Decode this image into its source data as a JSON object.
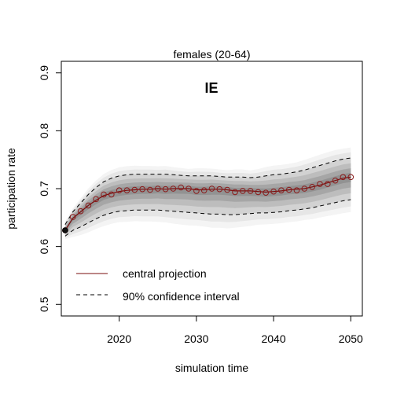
{
  "chart_data": {
    "type": "line",
    "title": "females (20-64)",
    "panel_label": "IE",
    "xlabel": "simulation time",
    "ylabel": "participation rate",
    "xlim": [
      2012.5,
      2051.5
    ],
    "ylim": [
      0.48,
      0.92
    ],
    "x_ticks": [
      2020,
      2030,
      2040,
      2050
    ],
    "y_ticks": [
      0.5,
      0.6,
      0.7,
      0.8,
      0.9
    ],
    "x_tick_labels": [
      "2020",
      "2030",
      "2040",
      "2050"
    ],
    "y_tick_labels": [
      "0.5",
      "0.6",
      "0.7",
      "0.8",
      "0.9"
    ],
    "grid": false,
    "legend_position": "bottom-left",
    "x": [
      2013,
      2014,
      2015,
      2016,
      2017,
      2018,
      2019,
      2020,
      2021,
      2022,
      2023,
      2024,
      2025,
      2026,
      2027,
      2028,
      2029,
      2030,
      2031,
      2032,
      2033,
      2034,
      2035,
      2036,
      2037,
      2038,
      2039,
      2040,
      2041,
      2042,
      2043,
      2044,
      2045,
      2046,
      2047,
      2048,
      2049,
      2050
    ],
    "central": [
      0.628,
      0.649,
      0.66,
      0.671,
      0.68,
      0.688,
      0.692,
      0.695,
      0.697,
      0.698,
      0.699,
      0.699,
      0.7,
      0.699,
      0.7,
      0.7,
      0.7,
      0.698,
      0.698,
      0.699,
      0.699,
      0.698,
      0.696,
      0.696,
      0.696,
      0.695,
      0.694,
      0.695,
      0.696,
      0.698,
      0.699,
      0.7,
      0.703,
      0.706,
      0.71,
      0.714,
      0.718,
      0.72
    ],
    "markers_y": [
      0.628,
      0.651,
      0.661,
      0.671,
      0.682,
      0.69,
      0.69,
      0.697,
      0.697,
      0.698,
      0.699,
      0.698,
      0.7,
      0.699,
      0.7,
      0.702,
      0.7,
      0.696,
      0.697,
      0.7,
      0.699,
      0.698,
      0.694,
      0.696,
      0.696,
      0.694,
      0.693,
      0.695,
      0.697,
      0.698,
      0.697,
      0.7,
      0.703,
      0.708,
      0.708,
      0.714,
      0.72,
      0.72
    ],
    "ci90_upper": [
      0.638,
      0.66,
      0.675,
      0.69,
      0.702,
      0.712,
      0.718,
      0.722,
      0.724,
      0.725,
      0.725,
      0.725,
      0.725,
      0.725,
      0.724,
      0.723,
      0.722,
      0.722,
      0.722,
      0.722,
      0.721,
      0.72,
      0.72,
      0.72,
      0.719,
      0.72,
      0.722,
      0.724,
      0.725,
      0.727,
      0.729,
      0.732,
      0.736,
      0.74,
      0.744,
      0.748,
      0.751,
      0.753
    ],
    "ci90_lower": [
      0.618,
      0.628,
      0.634,
      0.641,
      0.648,
      0.654,
      0.658,
      0.661,
      0.662,
      0.663,
      0.663,
      0.663,
      0.663,
      0.662,
      0.661,
      0.66,
      0.659,
      0.658,
      0.657,
      0.656,
      0.656,
      0.655,
      0.655,
      0.656,
      0.657,
      0.658,
      0.658,
      0.659,
      0.66,
      0.662,
      0.663,
      0.665,
      0.667,
      0.67,
      0.673,
      0.676,
      0.679,
      0.681
    ],
    "legend": [
      "central projection",
      "90% confidence interval"
    ],
    "colors": {
      "central_line": "#7a0c0c",
      "marker_stroke": "#8b1a1a",
      "confidence_line": "#000000",
      "fan": [
        "#f4f4f4",
        "#e6e6e6",
        "#d2d2d2",
        "#bdbdbd",
        "#a6a6a6",
        "#929292"
      ]
    }
  }
}
